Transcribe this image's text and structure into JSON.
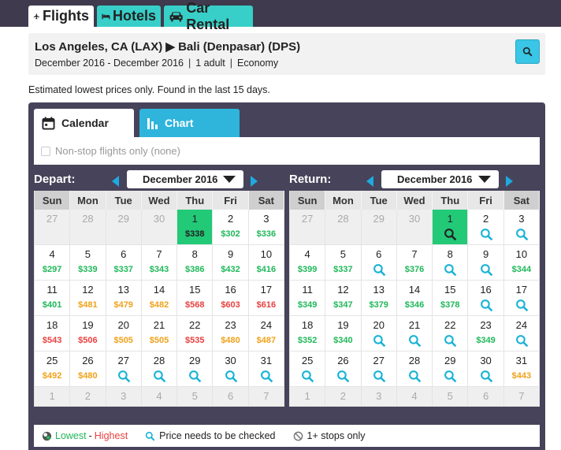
{
  "tabs": [
    {
      "label": "Flights",
      "icon": "airplane-icon"
    },
    {
      "label": "Hotels",
      "icon": "bed-icon"
    },
    {
      "label": "Car Rental",
      "icon": "car-icon"
    }
  ],
  "search": {
    "route": "Los Angeles, CA (LAX) ▶ Bali (Denpasar) (DPS)",
    "dates": "December 2016 - December 2016",
    "travelers": "1 adult",
    "cabin": "Economy"
  },
  "notice": "Estimated lowest prices only. Found in the last 15 days.",
  "view_tabs": {
    "calendar": "Calendar",
    "chart": "Chart"
  },
  "nonstop_label": "Non-stop flights only (none)",
  "weekdays": [
    "Sun",
    "Mon",
    "Tue",
    "Wed",
    "Thu",
    "Fri",
    "Sat"
  ],
  "depart": {
    "label": "Depart:",
    "month": "December 2016",
    "weeks": [
      [
        {
          "d": "27",
          "o": true
        },
        {
          "d": "28",
          "o": true
        },
        {
          "d": "29",
          "o": true
        },
        {
          "d": "30",
          "o": true
        },
        {
          "d": "1",
          "p": "$338",
          "s": true
        },
        {
          "d": "2",
          "p": "$302",
          "c": "green"
        },
        {
          "d": "3",
          "p": "$336",
          "c": "green"
        }
      ],
      [
        {
          "d": "4",
          "p": "$297",
          "c": "green"
        },
        {
          "d": "5",
          "p": "$339",
          "c": "green"
        },
        {
          "d": "6",
          "p": "$337",
          "c": "green"
        },
        {
          "d": "7",
          "p": "$343",
          "c": "green"
        },
        {
          "d": "8",
          "p": "$386",
          "c": "green"
        },
        {
          "d": "9",
          "p": "$432",
          "c": "green"
        },
        {
          "d": "10",
          "p": "$416",
          "c": "green"
        }
      ],
      [
        {
          "d": "11",
          "p": "$401",
          "c": "green"
        },
        {
          "d": "12",
          "p": "$481",
          "c": "orange"
        },
        {
          "d": "13",
          "p": "$479",
          "c": "orange"
        },
        {
          "d": "14",
          "p": "$482",
          "c": "orange"
        },
        {
          "d": "15",
          "p": "$568",
          "c": "red"
        },
        {
          "d": "16",
          "p": "$603",
          "c": "red"
        },
        {
          "d": "17",
          "p": "$616",
          "c": "red"
        }
      ],
      [
        {
          "d": "18",
          "p": "$543",
          "c": "red"
        },
        {
          "d": "19",
          "p": "$506",
          "c": "red"
        },
        {
          "d": "20",
          "p": "$505",
          "c": "orange"
        },
        {
          "d": "21",
          "p": "$505",
          "c": "orange"
        },
        {
          "d": "22",
          "p": "$535",
          "c": "red"
        },
        {
          "d": "23",
          "p": "$480",
          "c": "orange"
        },
        {
          "d": "24",
          "p": "$487",
          "c": "orange"
        }
      ],
      [
        {
          "d": "25",
          "p": "$492",
          "c": "orange"
        },
        {
          "d": "26",
          "p": "$480",
          "c": "orange"
        },
        {
          "d": "27",
          "q": true
        },
        {
          "d": "28",
          "q": true
        },
        {
          "d": "29",
          "q": true
        },
        {
          "d": "30",
          "q": true
        },
        {
          "d": "31",
          "q": true
        }
      ],
      [
        {
          "d": "1",
          "o": true
        },
        {
          "d": "2",
          "o": true
        },
        {
          "d": "3",
          "o": true
        },
        {
          "d": "4",
          "o": true
        },
        {
          "d": "5",
          "o": true
        },
        {
          "d": "6",
          "o": true
        },
        {
          "d": "7",
          "o": true
        }
      ]
    ]
  },
  "return": {
    "label": "Return:",
    "month": "December 2016",
    "weeks": [
      [
        {
          "d": "27",
          "o": true
        },
        {
          "d": "28",
          "o": true
        },
        {
          "d": "29",
          "o": true
        },
        {
          "d": "30",
          "o": true
        },
        {
          "d": "1",
          "q": true,
          "s": true
        },
        {
          "d": "2",
          "q": true
        },
        {
          "d": "3",
          "q": true
        }
      ],
      [
        {
          "d": "4",
          "p": "$399",
          "c": "green"
        },
        {
          "d": "5",
          "p": "$337",
          "c": "green"
        },
        {
          "d": "6",
          "q": true
        },
        {
          "d": "7",
          "p": "$376",
          "c": "green"
        },
        {
          "d": "8",
          "q": true
        },
        {
          "d": "9",
          "q": true
        },
        {
          "d": "10",
          "p": "$344",
          "c": "green"
        }
      ],
      [
        {
          "d": "11",
          "p": "$349",
          "c": "green"
        },
        {
          "d": "12",
          "p": "$347",
          "c": "green"
        },
        {
          "d": "13",
          "p": "$379",
          "c": "green"
        },
        {
          "d": "14",
          "p": "$346",
          "c": "green"
        },
        {
          "d": "15",
          "p": "$378",
          "c": "green"
        },
        {
          "d": "16",
          "q": true
        },
        {
          "d": "17",
          "q": true
        }
      ],
      [
        {
          "d": "18",
          "p": "$352",
          "c": "green"
        },
        {
          "d": "19",
          "p": "$340",
          "c": "green"
        },
        {
          "d": "20",
          "q": true
        },
        {
          "d": "21",
          "q": true
        },
        {
          "d": "22",
          "q": true
        },
        {
          "d": "23",
          "p": "$349",
          "c": "green"
        },
        {
          "d": "24",
          "q": true
        }
      ],
      [
        {
          "d": "25",
          "q": true
        },
        {
          "d": "26",
          "q": true
        },
        {
          "d": "27",
          "q": true
        },
        {
          "d": "28",
          "q": true
        },
        {
          "d": "29",
          "q": true
        },
        {
          "d": "30",
          "q": true
        },
        {
          "d": "31",
          "p": "$443",
          "c": "orange"
        }
      ],
      [
        {
          "d": "1",
          "o": true
        },
        {
          "d": "2",
          "o": true
        },
        {
          "d": "3",
          "o": true
        },
        {
          "d": "4",
          "o": true
        },
        {
          "d": "5",
          "o": true
        },
        {
          "d": "6",
          "o": true
        },
        {
          "d": "7",
          "o": true
        }
      ]
    ]
  },
  "legend": {
    "lowest": "Lowest",
    "dash": "-",
    "highest": "Highest",
    "check": "Price needs to be checked",
    "stops": "1+ stops only"
  },
  "colors": {
    "green": "#1fb85a",
    "orange": "#f0a21a",
    "red": "#e94040",
    "teal_tab": "#38cfc9",
    "blue": "#1fa9e0",
    "selected": "#22c977"
  }
}
